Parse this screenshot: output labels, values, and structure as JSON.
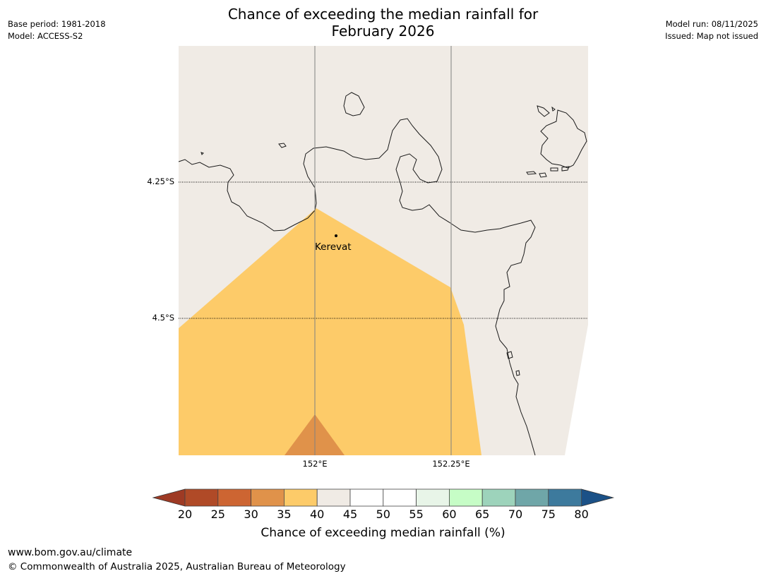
{
  "header": {
    "title_line1": "Chance of exceeding the median rainfall for",
    "title_line2": "February 2026",
    "base_period": "Base period: 1981-2018",
    "model": "Model: ACCESS-S2",
    "model_run": "Model run: 08/11/2025",
    "issued": "Issued: Map not issued"
  },
  "map": {
    "lat_labels": [
      "4.25°S",
      "4.5°S"
    ],
    "lon_labels": [
      "152°E",
      "152.25°E"
    ],
    "place": "Kerevat",
    "colors": {
      "land": "#f0ebe5",
      "band_35_40": "#fdcb69",
      "band_30_35": "#e0924a"
    }
  },
  "colorbar": {
    "ticks": [
      "20",
      "25",
      "30",
      "35",
      "40",
      "45",
      "50",
      "55",
      "60",
      "65",
      "70",
      "75",
      "80"
    ],
    "colors": [
      "#b04a27",
      "#cd6532",
      "#e0924a",
      "#fdcb69",
      "#f0ebe5",
      "#ffffff",
      "#ffffff",
      "#e8f5e8",
      "#c6fdc6",
      "#9dd3bb",
      "#6fa6a8",
      "#3d7a9d"
    ],
    "under_color": "#9e3a24",
    "over_color": "#1b5187",
    "label": "Chance of exceeding median rainfall (%)"
  },
  "footer": {
    "url": "www.bom.gov.au/climate",
    "copyright": "© Commonwealth of Australia 2025, Australian Bureau of Meteorology"
  }
}
